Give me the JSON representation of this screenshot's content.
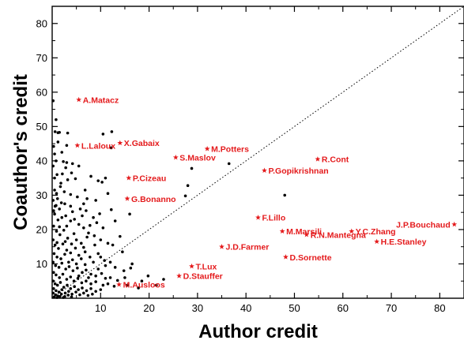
{
  "chart_data": {
    "type": "scatter",
    "xlabel": "Author credit",
    "ylabel": "Coauthor's credit",
    "xlim": [
      0,
      85
    ],
    "ylim": [
      0,
      85
    ],
    "xticks": [
      "10",
      "20",
      "30",
      "40",
      "50",
      "60",
      "70",
      "80"
    ],
    "yticks": [
      "10",
      "20",
      "30",
      "40",
      "50",
      "60",
      "70",
      "80"
    ],
    "xtick_values": [
      10,
      20,
      30,
      40,
      50,
      60,
      70,
      80
    ],
    "ytick_values": [
      10,
      20,
      30,
      40,
      50,
      60,
      70,
      80
    ],
    "reference_line": {
      "style": "dotted",
      "from": [
        0,
        0
      ],
      "to": [
        85,
        85
      ]
    },
    "point_color": "#000000",
    "highlight_color": "#e41a1c",
    "series": [
      {
        "marker": "dot",
        "points": [
          [
            0.2,
            57.5
          ],
          [
            0.6,
            48.5
          ],
          [
            1.2,
            48.2
          ],
          [
            1.5,
            48.3
          ],
          [
            3.2,
            48.1
          ],
          [
            3.0,
            44.5
          ],
          [
            10.5,
            47.8
          ],
          [
            12.3,
            48.5
          ],
          [
            12.2,
            43.8
          ],
          [
            0.3,
            44.2
          ],
          [
            0.5,
            42.0
          ],
          [
            0.8,
            40.0
          ],
          [
            0.2,
            38.5
          ],
          [
            1.0,
            36.0
          ],
          [
            2.3,
            39.8
          ],
          [
            3.0,
            39.5
          ],
          [
            4.2,
            39.2
          ],
          [
            5.5,
            38.5
          ],
          [
            8.0,
            35.5
          ],
          [
            9.5,
            34.2
          ],
          [
            10.3,
            33.8
          ],
          [
            11.0,
            35.0
          ],
          [
            1.8,
            33.5
          ],
          [
            3.2,
            34.5
          ],
          [
            4.8,
            34.8
          ],
          [
            2.5,
            31.0
          ],
          [
            3.8,
            30.2
          ],
          [
            5.2,
            29.5
          ],
          [
            6.8,
            31.5
          ],
          [
            7.2,
            29.0
          ],
          [
            0.2,
            28.5
          ],
          [
            0.8,
            27.0
          ],
          [
            1.5,
            26.0
          ],
          [
            2.6,
            27.5
          ],
          [
            3.8,
            26.8
          ],
          [
            4.2,
            25.2
          ],
          [
            5.8,
            26.0
          ],
          [
            6.2,
            24.0
          ],
          [
            7.0,
            25.5
          ],
          [
            8.5,
            23.5
          ],
          [
            9.8,
            24.6
          ],
          [
            12.2,
            25.8
          ],
          [
            0.5,
            24.5
          ],
          [
            1.2,
            22.8
          ],
          [
            2.0,
            23.5
          ],
          [
            3.0,
            21.0
          ],
          [
            3.8,
            22.5
          ],
          [
            4.6,
            23.0
          ],
          [
            5.5,
            21.5
          ],
          [
            6.5,
            20.5
          ],
          [
            7.8,
            21.2
          ],
          [
            9.2,
            22.0
          ],
          [
            10.5,
            20.5
          ],
          [
            0.3,
            21.0
          ],
          [
            0.9,
            19.5
          ],
          [
            1.6,
            18.5
          ],
          [
            2.4,
            19.8
          ],
          [
            3.2,
            17.5
          ],
          [
            4.5,
            18.8
          ],
          [
            5.0,
            17.0
          ],
          [
            6.0,
            16.0
          ],
          [
            7.2,
            17.8
          ],
          [
            8.8,
            15.5
          ],
          [
            0.2,
            17.0
          ],
          [
            0.6,
            15.5
          ],
          [
            1.3,
            14.5
          ],
          [
            2.2,
            15.8
          ],
          [
            3.0,
            14.0
          ],
          [
            3.8,
            13.2
          ],
          [
            4.8,
            14.6
          ],
          [
            5.5,
            12.5
          ],
          [
            6.8,
            13.5
          ],
          [
            0.4,
            13.0
          ],
          [
            1.0,
            12.0
          ],
          [
            1.8,
            11.5
          ],
          [
            2.6,
            12.8
          ],
          [
            3.4,
            10.5
          ],
          [
            4.2,
            11.2
          ],
          [
            5.0,
            10.0
          ],
          [
            6.0,
            11.5
          ],
          [
            0.2,
            10.5
          ],
          [
            0.7,
            9.5
          ],
          [
            1.4,
            9.0
          ],
          [
            2.0,
            10.2
          ],
          [
            2.8,
            8.5
          ],
          [
            3.5,
            9.2
          ],
          [
            4.3,
            8.0
          ],
          [
            5.2,
            8.8
          ],
          [
            6.2,
            7.5
          ],
          [
            7.0,
            8.2
          ],
          [
            8.0,
            7.0
          ],
          [
            9.0,
            6.5
          ],
          [
            10.2,
            7.2
          ],
          [
            11.0,
            5.8
          ],
          [
            12.0,
            6.0
          ],
          [
            13.5,
            5.2
          ],
          [
            15.0,
            6.0
          ],
          [
            16.2,
            8.8
          ],
          [
            16.5,
            10.0
          ],
          [
            19.8,
            6.5
          ],
          [
            15.5,
            3.8
          ],
          [
            17.8,
            3.0
          ],
          [
            0.3,
            7.5
          ],
          [
            0.8,
            6.8
          ],
          [
            1.5,
            6.0
          ],
          [
            2.2,
            7.0
          ],
          [
            3.0,
            5.5
          ],
          [
            3.8,
            6.2
          ],
          [
            4.5,
            5.0
          ],
          [
            5.3,
            5.8
          ],
          [
            6.1,
            4.5
          ],
          [
            7.0,
            5.0
          ],
          [
            8.0,
            4.2
          ],
          [
            9.0,
            4.8
          ],
          [
            10.5,
            3.8
          ],
          [
            11.5,
            4.2
          ],
          [
            12.8,
            3.5
          ],
          [
            0.2,
            5.0
          ],
          [
            0.6,
            4.2
          ],
          [
            1.1,
            3.8
          ],
          [
            1.7,
            4.6
          ],
          [
            2.4,
            3.2
          ],
          [
            3.1,
            3.8
          ],
          [
            3.8,
            2.8
          ],
          [
            4.6,
            3.4
          ],
          [
            5.4,
            2.5
          ],
          [
            6.2,
            3.0
          ],
          [
            7.1,
            2.2
          ],
          [
            8.0,
            2.8
          ],
          [
            9.0,
            2.0
          ],
          [
            10.0,
            2.5
          ],
          [
            0.3,
            2.8
          ],
          [
            0.8,
            2.2
          ],
          [
            1.4,
            1.8
          ],
          [
            2.0,
            2.5
          ],
          [
            2.7,
            1.5
          ],
          [
            3.4,
            2.0
          ],
          [
            4.1,
            1.2
          ],
          [
            4.9,
            1.8
          ],
          [
            5.7,
            1.0
          ],
          [
            6.5,
            1.5
          ],
          [
            7.4,
            0.8
          ],
          [
            8.3,
            1.2
          ],
          [
            0.2,
            1.5
          ],
          [
            0.7,
            1.0
          ],
          [
            1.2,
            0.6
          ],
          [
            1.9,
            1.2
          ],
          [
            2.6,
            0.5
          ],
          [
            3.3,
            0.9
          ],
          [
            4.0,
            0.4
          ],
          [
            0.4,
            0.4
          ],
          [
            1.0,
            0.2
          ],
          [
            1.6,
            0.5
          ],
          [
            2.3,
            0.2
          ],
          [
            28.0,
            32.8
          ],
          [
            27.5,
            29.8
          ],
          [
            28.8,
            37.8
          ],
          [
            36.5,
            39.2
          ],
          [
            48.0,
            30.0
          ],
          [
            0.5,
            31.5
          ],
          [
            1.1,
            29.0
          ],
          [
            4.0,
            36.5
          ],
          [
            6.5,
            27.5
          ],
          [
            9.0,
            28.5
          ],
          [
            11.5,
            30.5
          ],
          [
            13.0,
            22.5
          ],
          [
            12.5,
            15.5
          ],
          [
            14.5,
            13.5
          ],
          [
            10.0,
            12.0
          ],
          [
            8.5,
            10.5
          ],
          [
            11.0,
            9.5
          ],
          [
            13.0,
            9.0
          ],
          [
            14.8,
            8.0
          ],
          [
            0.5,
            35.0
          ],
          [
            1.2,
            45.5
          ],
          [
            2.0,
            42.5
          ],
          [
            0.8,
            52.0
          ],
          [
            0.3,
            25.5
          ],
          [
            1.9,
            27.8
          ],
          [
            0.9,
            30.5
          ],
          [
            2.1,
            36.2
          ],
          [
            7.5,
            19.0
          ],
          [
            8.7,
            18.2
          ],
          [
            10.0,
            17.0
          ],
          [
            11.5,
            16.0
          ],
          [
            6.5,
            14.8
          ],
          [
            9.5,
            13.0
          ],
          [
            7.8,
            12.0
          ],
          [
            10.8,
            11.0
          ],
          [
            12.0,
            10.5
          ],
          [
            9.5,
            8.5
          ],
          [
            6.8,
            9.8
          ],
          [
            5.5,
            6.5
          ],
          [
            7.5,
            6.0
          ],
          [
            1.0,
            16.2
          ],
          [
            2.7,
            16.5
          ],
          [
            4.0,
            15.8
          ],
          [
            1.5,
            20.8
          ],
          [
            2.8,
            24.0
          ],
          [
            0.6,
            26.8
          ],
          [
            1.7,
            32.5
          ],
          [
            2.8,
            38.0
          ],
          [
            14.0,
            18.0
          ],
          [
            16.0,
            24.5
          ],
          [
            18.5,
            5.0
          ],
          [
            21.5,
            3.8
          ],
          [
            23.0,
            5.5
          ]
        ]
      },
      {
        "marker": "star",
        "points": [
          {
            "x": 5.5,
            "y": 57.8,
            "label": "A.Matacz"
          },
          {
            "x": 14.0,
            "y": 45.2,
            "label": "X.Gabaix"
          },
          {
            "x": 5.2,
            "y": 44.5,
            "label": "L.Laloux"
          },
          {
            "x": 25.5,
            "y": 41.0,
            "label": "S.Maslov"
          },
          {
            "x": 32.0,
            "y": 43.5,
            "label": "M.Potters"
          },
          {
            "x": 54.8,
            "y": 40.5,
            "label": "R.Cont"
          },
          {
            "x": 43.8,
            "y": 37.2,
            "label": "P.Gopikrishnan"
          },
          {
            "x": 15.8,
            "y": 35.0,
            "label": "P.Cizeau"
          },
          {
            "x": 15.5,
            "y": 29.0,
            "label": "G.Bonanno"
          },
          {
            "x": 42.5,
            "y": 23.5,
            "label": "F.Lillo"
          },
          {
            "x": 83.0,
            "y": 21.5,
            "label": "J.P.Bouchaud"
          },
          {
            "x": 47.5,
            "y": 19.5,
            "label": "M.Marsili"
          },
          {
            "x": 61.8,
            "y": 19.5,
            "label": "Y.C.Zhang"
          },
          {
            "x": 52.5,
            "y": 18.5,
            "label": "R.N.Mantegna"
          },
          {
            "x": 67.0,
            "y": 16.5,
            "label": "H.E.Stanley"
          },
          {
            "x": 35.0,
            "y": 15.0,
            "label": "J.D.Farmer"
          },
          {
            "x": 48.2,
            "y": 12.0,
            "label": "D.Sornette"
          },
          {
            "x": 28.8,
            "y": 9.3,
            "label": "T.Lux"
          },
          {
            "x": 26.2,
            "y": 6.5,
            "label": "D.Stauffer"
          },
          {
            "x": 13.8,
            "y": 4.0,
            "label": "M.Ausloos"
          }
        ]
      }
    ]
  }
}
